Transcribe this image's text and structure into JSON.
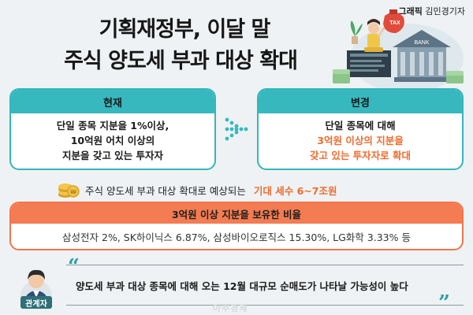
{
  "credit": {
    "label": "그래픽",
    "author": "김민경기자"
  },
  "title": {
    "line1": "기획재정부, 이달 말",
    "line2": "주식 양도세 부과 대상 확대"
  },
  "illustration": {
    "tax_text": "TAX",
    "bank_text": "BANK"
  },
  "current": {
    "heading": "현재",
    "lines": [
      "단일 종목 지분을 1%이상,",
      "10억원 어치 이상의",
      "지분을 갖고 있는 투자자"
    ]
  },
  "changed": {
    "heading": "변경",
    "line1": "단일 종목에 대해",
    "line2": "3억원 이상의 지분을",
    "line3": "갖고 있는 투자자로 확대"
  },
  "expect": {
    "text": "주식 양도세 부과 대상 확대로 예상되는",
    "highlight": "기대 세수 6~7조원"
  },
  "ratio": {
    "heading": "3억원 이상 지분을 보유한 비율",
    "text": "삼성전자 2%, SK하이닉스 6.87%, 삼성바이오로직스 15.30%, LG화학 3.33% 등"
  },
  "quote": {
    "person_label": "관계자",
    "text": "양도세 부과 대상 종목에 대해 오는 12월 대규모 순매도가 나타날 가능성이 높다"
  },
  "watermark": "아주경제",
  "colors": {
    "teal": "#37b8be",
    "orange": "#f37c52",
    "highlight": "#ef6b2e"
  }
}
